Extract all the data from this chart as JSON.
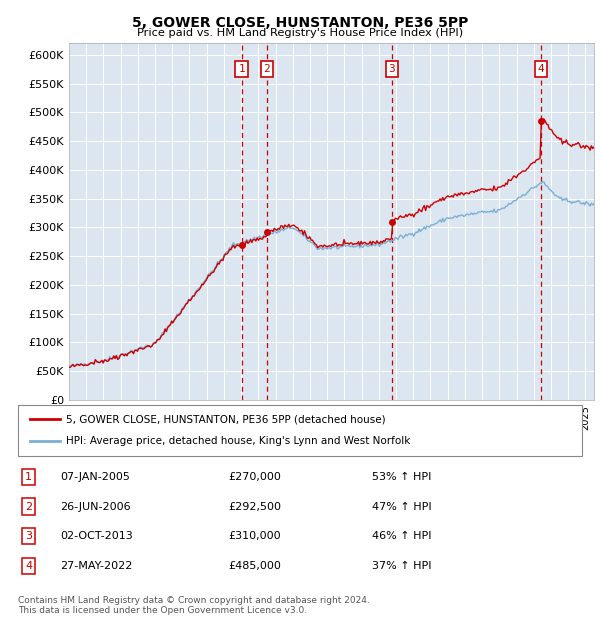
{
  "title": "5, GOWER CLOSE, HUNSTANTON, PE36 5PP",
  "subtitle": "Price paid vs. HM Land Registry's House Price Index (HPI)",
  "ylabel_ticks": [
    "£0",
    "£50K",
    "£100K",
    "£150K",
    "£200K",
    "£250K",
    "£300K",
    "£350K",
    "£400K",
    "£450K",
    "£500K",
    "£550K",
    "£600K"
  ],
  "ylim": [
    0,
    620000
  ],
  "ytick_values": [
    0,
    50000,
    100000,
    150000,
    200000,
    250000,
    300000,
    350000,
    400000,
    450000,
    500000,
    550000,
    600000
  ],
  "plot_bg_color": "#dce6f0",
  "grid_color": "#ffffff",
  "sale_color": "#cc0000",
  "hpi_color": "#7bafd4",
  "transactions": [
    {
      "num": 1,
      "date": "07-JAN-2005",
      "price": 270000,
      "pct": "53%",
      "x_year": 2005.03
    },
    {
      "num": 2,
      "date": "26-JUN-2006",
      "price": 292500,
      "pct": "47%",
      "x_year": 2006.49
    },
    {
      "num": 3,
      "date": "02-OCT-2013",
      "price": 310000,
      "pct": "46%",
      "x_year": 2013.75
    },
    {
      "num": 4,
      "date": "27-MAY-2022",
      "price": 485000,
      "pct": "37%",
      "x_year": 2022.41
    }
  ],
  "legend_label_sale": "5, GOWER CLOSE, HUNSTANTON, PE36 5PP (detached house)",
  "legend_label_hpi": "HPI: Average price, detached house, King's Lynn and West Norfolk",
  "footnote": "Contains HM Land Registry data © Crown copyright and database right 2024.\nThis data is licensed under the Open Government Licence v3.0.",
  "xmin": 1995,
  "xmax": 2025.5
}
